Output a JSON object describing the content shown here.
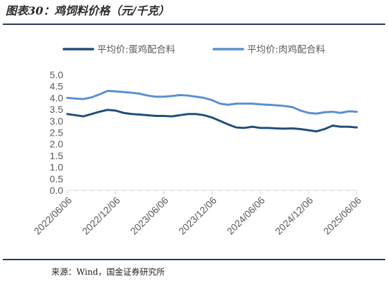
{
  "header": {
    "title": "图表30：鸡饲料价格（元/千克）"
  },
  "footer": {
    "source": "来源：Wind，国金证券研究所"
  },
  "colors": {
    "rule": "#1f3d5c",
    "axis": "#d9d9d9"
  },
  "chart_data": {
    "type": "line",
    "title": "",
    "xlabel": "",
    "ylabel": "",
    "ylim": [
      0,
      5
    ],
    "yticks": [
      "0.0",
      "0.5",
      "1.0",
      "1.5",
      "2.0",
      "2.5",
      "3.0",
      "3.5",
      "4.0",
      "4.5",
      "5.0"
    ],
    "xticks": [
      "2022/06/06",
      "2022/12/06",
      "2023/06/06",
      "2023/12/06",
      "2024/06/06",
      "2024/12/06",
      "2025/06/06"
    ],
    "grid": false,
    "legend_position": "top",
    "x": [
      "2022/06/06",
      "2022/07/06",
      "2022/08/06",
      "2022/09/06",
      "2022/10/06",
      "2022/11/06",
      "2022/12/06",
      "2023/01/06",
      "2023/02/06",
      "2023/03/06",
      "2023/04/06",
      "2023/05/06",
      "2023/06/06",
      "2023/07/06",
      "2023/08/06",
      "2023/09/06",
      "2023/10/06",
      "2023/11/06",
      "2023/12/06",
      "2024/01/06",
      "2024/02/06",
      "2024/03/06",
      "2024/04/06",
      "2024/05/06",
      "2024/06/06",
      "2024/07/06",
      "2024/08/06",
      "2024/09/06",
      "2024/10/06",
      "2024/11/06",
      "2024/12/06",
      "2025/01/06",
      "2025/02/06",
      "2025/03/06",
      "2025/04/06",
      "2025/05/06",
      "2025/06/06"
    ],
    "series": [
      {
        "name": "平均价:蛋鸡配合料",
        "color": "#1f4e79",
        "values": [
          3.3,
          3.25,
          3.2,
          3.3,
          3.4,
          3.48,
          3.45,
          3.35,
          3.3,
          3.28,
          3.25,
          3.22,
          3.22,
          3.2,
          3.25,
          3.3,
          3.3,
          3.25,
          3.15,
          3.0,
          2.85,
          2.72,
          2.7,
          2.75,
          2.7,
          2.7,
          2.68,
          2.67,
          2.68,
          2.65,
          2.6,
          2.55,
          2.65,
          2.8,
          2.75,
          2.75,
          2.72
        ]
      },
      {
        "name": "平均价:肉鸡配合料",
        "color": "#5b8fd1",
        "values": [
          4.0,
          3.97,
          3.95,
          4.02,
          4.15,
          4.3,
          4.28,
          4.25,
          4.22,
          4.18,
          4.1,
          4.05,
          4.05,
          4.08,
          4.12,
          4.1,
          4.05,
          4.0,
          3.9,
          3.75,
          3.7,
          3.75,
          3.75,
          3.75,
          3.72,
          3.7,
          3.68,
          3.65,
          3.6,
          3.45,
          3.35,
          3.32,
          3.38,
          3.4,
          3.35,
          3.42,
          3.4
        ]
      }
    ]
  }
}
